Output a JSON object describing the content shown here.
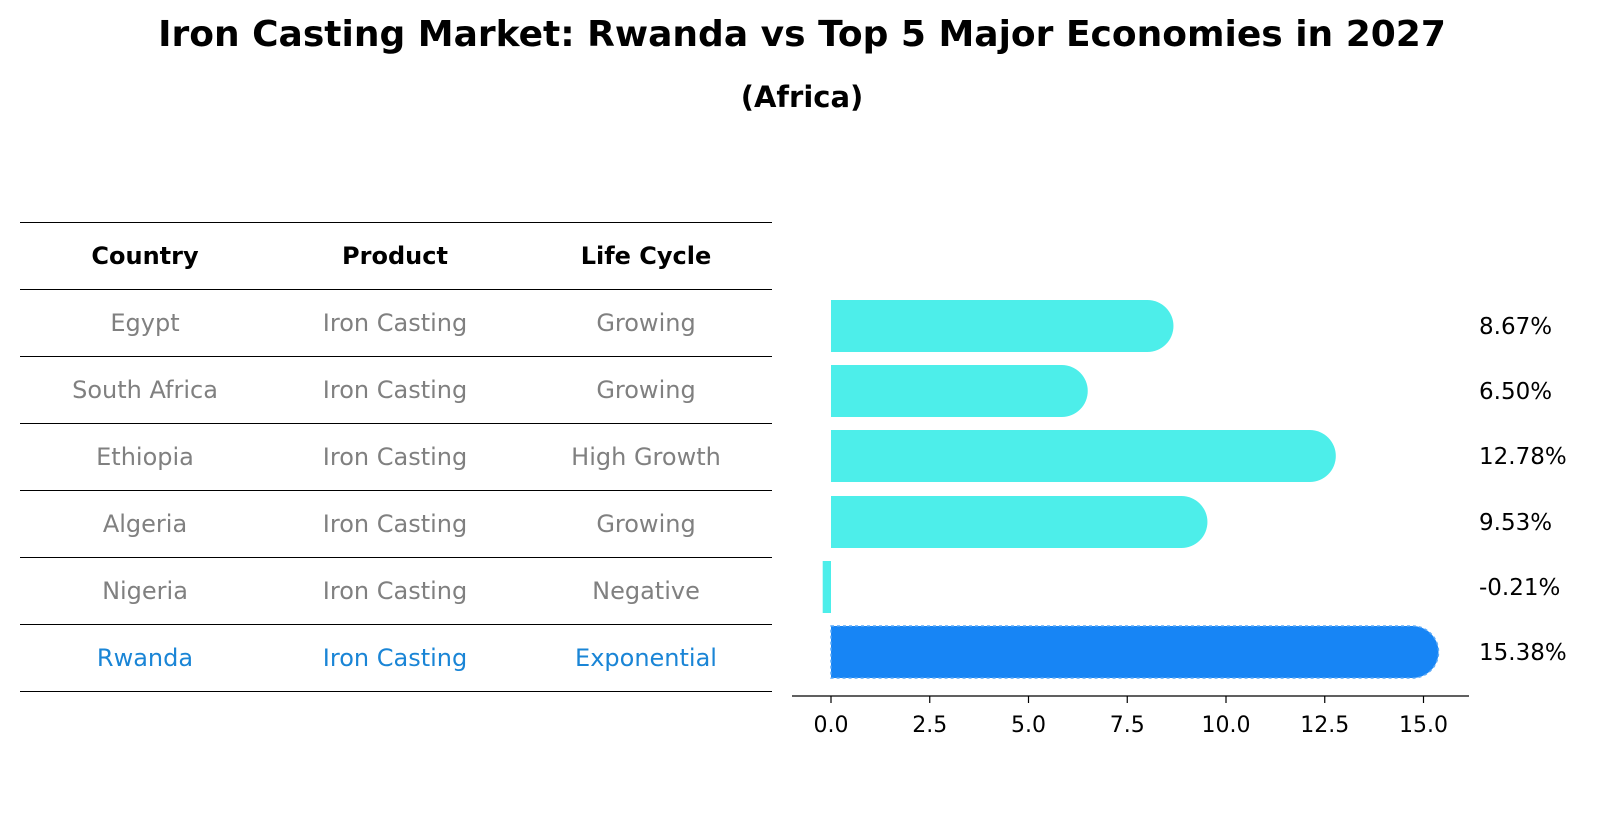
{
  "title": "Iron Casting Market: Rwanda vs Top 5 Major Economies in 2027",
  "subtitle": "(Africa)",
  "table": {
    "headers": [
      "Country",
      "Product",
      "Life Cycle"
    ],
    "rows": [
      [
        "Egypt",
        "Iron Casting",
        "Growing"
      ],
      [
        "South Africa",
        "Iron Casting",
        "Growing"
      ],
      [
        "Ethiopia",
        "Iron Casting",
        "High Growth"
      ],
      [
        "Algeria",
        "Iron Casting",
        "Growing"
      ],
      [
        "Nigeria",
        "Iron Casting",
        "Negative"
      ],
      [
        "Rwanda",
        "Iron Casting",
        "Exponential"
      ]
    ],
    "highlight_row": 5
  },
  "colors": {
    "bar": "#4deeea",
    "highlight_bar": "#1785f5",
    "highlight_text": "#1a85d6",
    "muted_text": "#808080"
  },
  "chart_data": {
    "type": "bar",
    "orientation": "horizontal",
    "categories": [
      "Egypt",
      "South Africa",
      "Ethiopia",
      "Algeria",
      "Nigeria",
      "Rwanda"
    ],
    "values": [
      8.67,
      6.5,
      12.78,
      9.53,
      -0.21,
      15.38
    ],
    "value_labels": [
      "8.67%",
      "6.50%",
      "12.78%",
      "9.53%",
      "-0.21%",
      "15.38%"
    ],
    "x_ticks": [
      "0.0",
      "2.5",
      "5.0",
      "7.5",
      "10.0",
      "12.5",
      "15.0"
    ],
    "xlim": [
      -1,
      16.2
    ],
    "xlabel": "",
    "ylabel": "",
    "grid": false,
    "highlight_index": 5
  }
}
